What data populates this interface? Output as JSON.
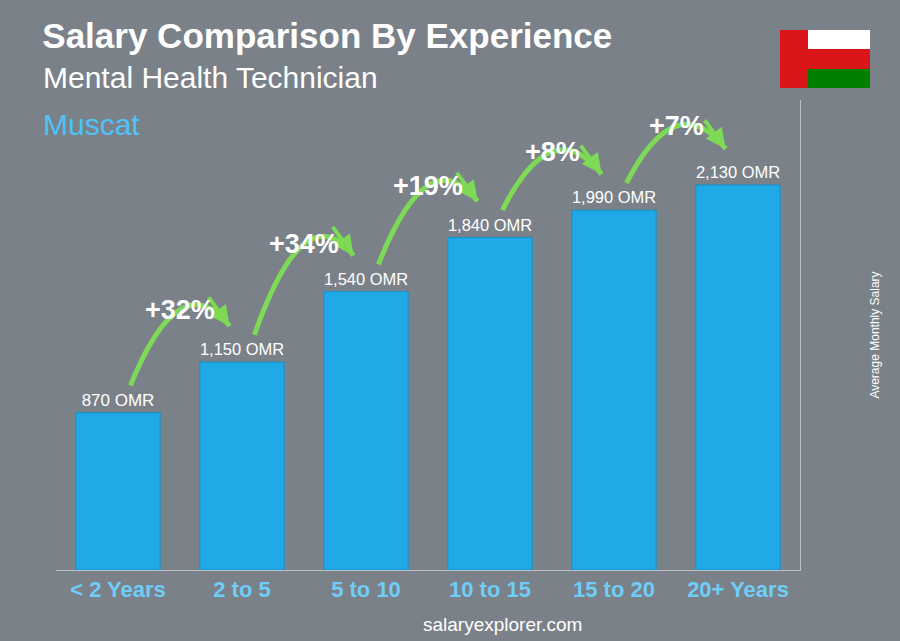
{
  "chart_data": {
    "type": "bar",
    "title": "Salary Comparison By Experience",
    "subtitle": "Mental Health Technician",
    "location": "Muscat",
    "y_label": "Average Monthly Salary",
    "source": "salaryexplorer.com",
    "categories": [
      "< 2 Years",
      "2 to 5",
      "5 to 10",
      "10 to 15",
      "15 to 20",
      "20+ Years"
    ],
    "values": [
      870,
      1150,
      1540,
      1840,
      1990,
      2130
    ],
    "value_labels": [
      "870 OMR",
      "1,150 OMR",
      "1,540 OMR",
      "1,840 OMR",
      "1,990 OMR",
      "2,130 OMR"
    ],
    "annotations": [
      "+32%",
      "+34%",
      "+19%",
      "+8%",
      "+7%"
    ],
    "color": "#1fa9e6",
    "ylim": [
      0,
      2600
    ],
    "yticks": [],
    "grid": false,
    "data_labels": true,
    "tick_labels": "x"
  }
}
